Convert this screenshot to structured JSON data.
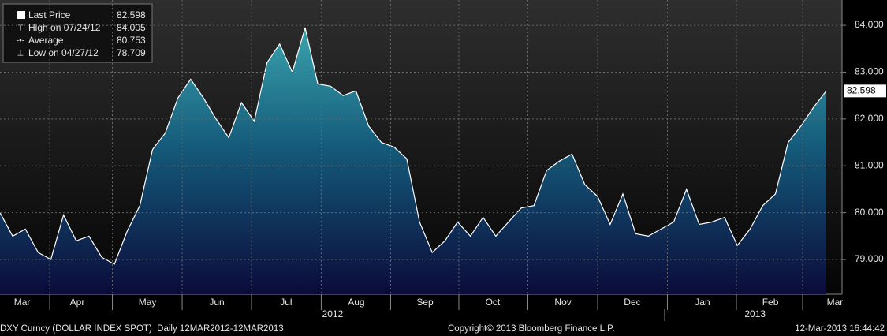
{
  "chart_data": {
    "type": "area",
    "series": [
      {
        "name": "Last Price",
        "color": "#ffffff",
        "last_value": 82.598,
        "values": [
          80.0,
          79.5,
          79.65,
          79.15,
          79.0,
          79.95,
          79.4,
          79.5,
          79.05,
          78.9,
          79.6,
          80.15,
          81.35,
          81.7,
          82.45,
          82.85,
          82.45,
          82.0,
          81.6,
          82.35,
          81.95,
          83.2,
          83.6,
          83.0,
          83.95,
          82.75,
          82.7,
          82.5,
          82.6,
          81.85,
          81.5,
          81.4,
          81.15,
          79.8,
          79.15,
          79.4,
          79.8,
          79.5,
          79.9,
          79.5,
          79.8,
          80.1,
          80.15,
          80.9,
          81.1,
          81.25,
          80.6,
          80.35,
          79.75,
          80.4,
          79.55,
          79.5,
          79.65,
          79.8,
          80.5,
          79.75,
          79.8,
          79.9,
          79.3,
          79.65,
          80.15,
          80.4,
          81.5,
          81.85,
          82.25,
          82.598
        ]
      }
    ],
    "stats": [
      {
        "label": "High on 07/24/12",
        "value": 84.005
      },
      {
        "label": "Average",
        "value": 80.753
      },
      {
        "label": "Low on 04/27/12",
        "value": 78.709
      }
    ],
    "ylim": [
      78.26,
      84.54
    ],
    "yticks": [
      {
        "value": 79,
        "label": "79.000"
      },
      {
        "value": 80,
        "label": "80.000"
      },
      {
        "value": 81,
        "label": "81.000"
      },
      {
        "value": 82,
        "label": "82.000"
      },
      {
        "value": 83,
        "label": "83.000"
      },
      {
        "value": 84,
        "label": "84.000"
      }
    ],
    "xlim": [
      0,
      66.24
    ],
    "xticks": [
      {
        "value": 1.74,
        "label": "Mar"
      },
      {
        "value": 6.08,
        "label": "Apr"
      },
      {
        "value": 11.6,
        "label": "May"
      },
      {
        "value": 17.06,
        "label": "Jun"
      },
      {
        "value": 22.51,
        "label": "Jul"
      },
      {
        "value": 28.03,
        "label": "Aug"
      },
      {
        "value": 33.43,
        "label": "Sep"
      },
      {
        "value": 38.76,
        "label": "Oct"
      },
      {
        "value": 44.29,
        "label": "Nov"
      },
      {
        "value": 49.74,
        "label": "Dec"
      },
      {
        "value": 55.26,
        "label": "Jan"
      },
      {
        "value": 60.6,
        "label": "Feb"
      },
      {
        "value": 65.68,
        "label": "Mar"
      }
    ],
    "year_ticks": [
      {
        "value": 26.17,
        "label": "2012"
      },
      {
        "value": 59.4,
        "label": "2013"
      }
    ],
    "grid": true,
    "footer": {
      "left": "DXY Curncy (DOLLAR INDEX SPOT)  Daily 12MAR2012-12MAR2013",
      "center": "Copyright© 2013 Bloomberg Finance L.P.",
      "right": "12-Mar-2013 16:44:42"
    }
  }
}
